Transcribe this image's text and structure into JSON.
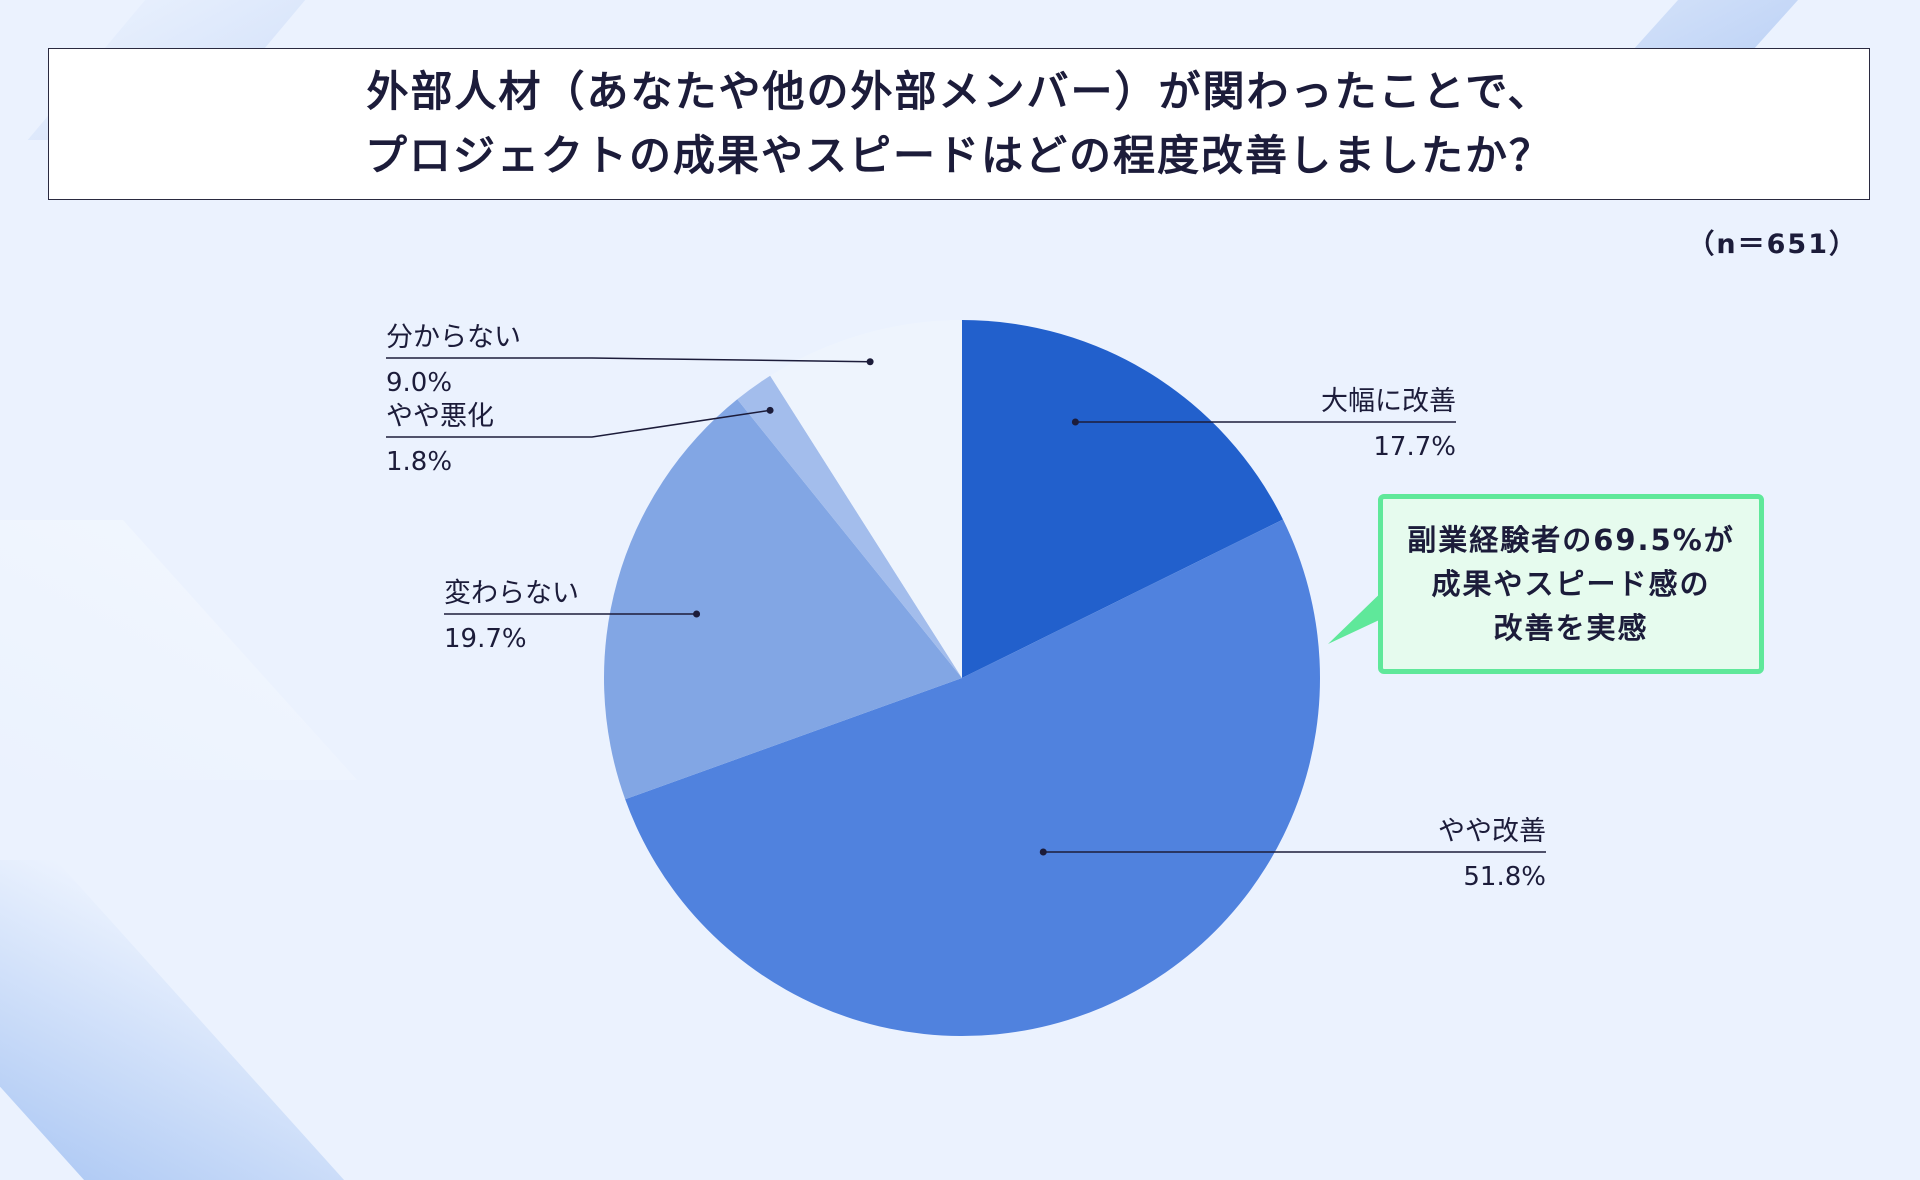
{
  "title": {
    "line1": "外部人材（あなたや他の外部メンバー）が関わったことで、",
    "line2": "プロジェクトの成果やスピードはどの程度改善しましたか？"
  },
  "sample_size": "（n＝651）",
  "callout": {
    "text": "副業経験者の69.5%が\n成果やスピード感の\n改善を実感"
  },
  "colors": {
    "dark_blue": "#2260cc",
    "mid_blue": "#5082de",
    "light_blue": "#82a6e4",
    "lighter_blue": "#a3bdec",
    "palest_blue": "#eef4fd",
    "callout_green": "#5fe89a"
  },
  "chart_data": {
    "type": "pie",
    "title": "",
    "start_angle": "12 o'clock",
    "direction": "clockwise",
    "slices": [
      {
        "label": "大幅に改善",
        "value": 17.7,
        "display": "17.7%",
        "color": "#2260cc"
      },
      {
        "label": "やや改善",
        "value": 51.8,
        "display": "51.8%",
        "color": "#5082de"
      },
      {
        "label": "変わらない",
        "value": 19.7,
        "display": "19.7%",
        "color": "#82a6e4"
      },
      {
        "label": "やや悪化",
        "value": 1.8,
        "display": "1.8%",
        "color": "#a3bdec"
      },
      {
        "label": "分からない",
        "value": 9.0,
        "display": "9.0%",
        "color": "#eef4fd"
      }
    ]
  }
}
